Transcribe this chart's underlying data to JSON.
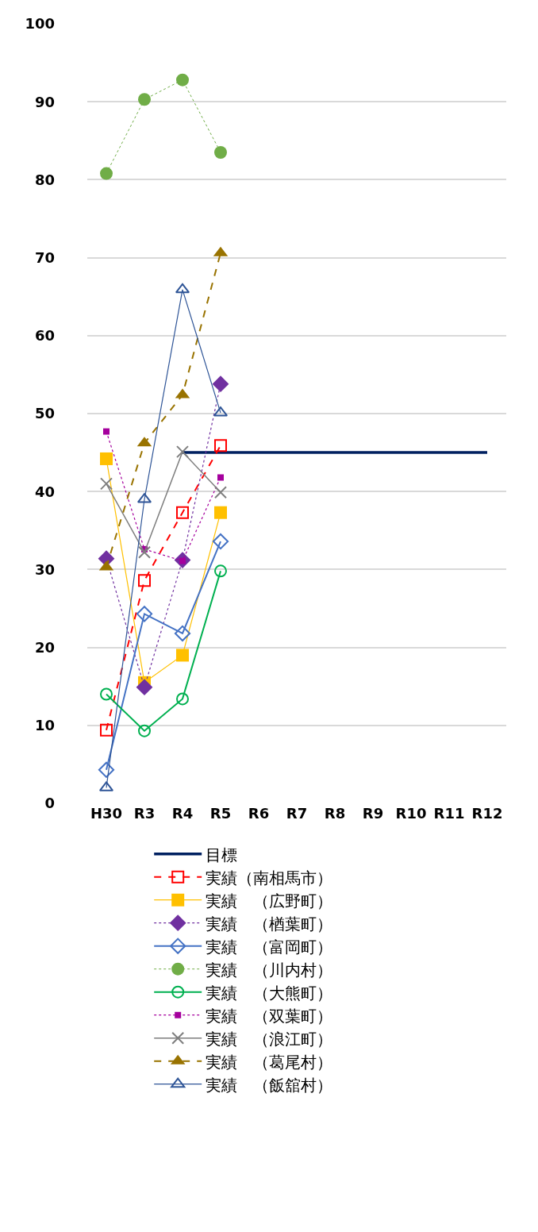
{
  "chart_data": {
    "type": "line",
    "categories": [
      "H30",
      "R3",
      "R4",
      "R5",
      "R6",
      "R7",
      "R8",
      "R9",
      "R10",
      "R11",
      "R12"
    ],
    "ylim": [
      0,
      100
    ],
    "yticks": [
      0,
      10,
      20,
      30,
      40,
      50,
      60,
      70,
      80,
      90,
      100
    ],
    "grid": "y",
    "legend": "bottom",
    "series": [
      {
        "name": "目標",
        "color": "#002060",
        "values": [
          null,
          null,
          45,
          45,
          45,
          45,
          45,
          45,
          45,
          45,
          45
        ],
        "marker": "none",
        "line_style": "solid"
      },
      {
        "name": "実績（南相馬市）",
        "color": "#ff0000",
        "values": [
          9.4,
          28.6,
          37.3,
          45.9,
          null,
          null,
          null,
          null,
          null,
          null,
          null
        ],
        "marker": "square",
        "line_style": "dashed"
      },
      {
        "name": "実績　（広野町）",
        "color": "#ffc000",
        "values": [
          44.2,
          15.5,
          19.0,
          37.3,
          null,
          null,
          null,
          null,
          null,
          null,
          null
        ],
        "marker": "square",
        "line_style": "solid"
      },
      {
        "name": "実績　（楢葉町）",
        "color": "#7030a0",
        "values": [
          31.4,
          14.9,
          31.2,
          53.8,
          null,
          null,
          null,
          null,
          null,
          null,
          null
        ],
        "marker": "diamond",
        "line_style": "dotted"
      },
      {
        "name": "実績　（富岡町）",
        "color": "#4472c4",
        "values": [
          4.3,
          24.3,
          21.8,
          33.6,
          null,
          null,
          null,
          null,
          null,
          null,
          null
        ],
        "marker": "diamond",
        "line_style": "solid"
      },
      {
        "name": "実績　（川内村）",
        "color": "#70ad47",
        "values": [
          80.8,
          90.3,
          92.8,
          83.5,
          null,
          null,
          null,
          null,
          null,
          null,
          null
        ],
        "marker": "circle",
        "line_style": "dotted"
      },
      {
        "name": "実績　（大熊町）",
        "color": "#00b050",
        "values": [
          14.0,
          9.3,
          13.4,
          29.8,
          null,
          null,
          null,
          null,
          null,
          null,
          null
        ],
        "marker": "circle",
        "line_style": "solid"
      },
      {
        "name": "実績　（双葉町）",
        "color": "#a5009d",
        "values": [
          47.7,
          32.6,
          31.1,
          41.8,
          null,
          null,
          null,
          null,
          null,
          null,
          null
        ],
        "marker": "square",
        "line_style": "dotted"
      },
      {
        "name": "実績　（浪江町）",
        "color": "#7f7f7f",
        "values": [
          41.0,
          32.2,
          45.1,
          39.9,
          null,
          null,
          null,
          null,
          null,
          null,
          null
        ],
        "marker": "cross",
        "line_style": "solid"
      },
      {
        "name": "実績　（葛尾村）",
        "color": "#997300",
        "values": [
          30.3,
          46.2,
          52.4,
          70.6,
          null,
          null,
          null,
          null,
          null,
          null,
          null
        ],
        "marker": "triangle",
        "line_style": "dashed"
      },
      {
        "name": "実績　（飯舘村）",
        "color": "#2f5597",
        "values": [
          2.0,
          39.0,
          65.9,
          50.1,
          null,
          null,
          null,
          null,
          null,
          null,
          null
        ],
        "marker": "triangle",
        "line_style": "solid"
      }
    ]
  }
}
